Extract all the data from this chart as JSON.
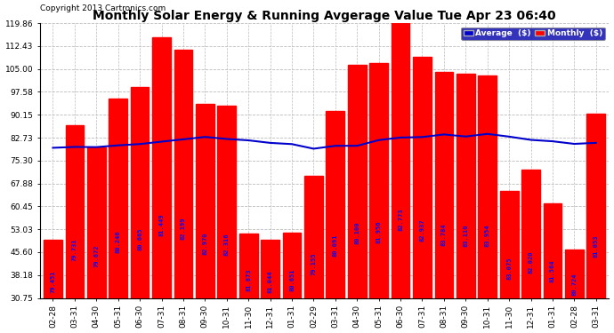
{
  "title": "Monthly Solar Energy & Running Avgerage Value Tue Apr 23 06:40",
  "copyright": "Copyright 2013 Cartronics.com",
  "categories": [
    "02-28",
    "03-31",
    "04-30",
    "05-31",
    "06-30",
    "07-31",
    "08-31",
    "09-30",
    "10-31",
    "11-30",
    "12-31",
    "01-31",
    "02-29",
    "03-31",
    "04-30",
    "05-31",
    "06-30",
    "07-31",
    "08-31",
    "09-30",
    "10-31",
    "11-30",
    "12-31",
    "01-31",
    "02-28",
    "03-31"
  ],
  "monthly_values": [
    49.5,
    86.7,
    79.5,
    95.5,
    99.2,
    115.2,
    111.3,
    93.6,
    93.0,
    51.5,
    49.5,
    51.8,
    70.5,
    91.5,
    106.5,
    107.0,
    122.0,
    109.0,
    104.0,
    103.5,
    103.0,
    65.5,
    72.5,
    61.5,
    46.5,
    90.5
  ],
  "average_values": [
    79.451,
    79.731,
    79.672,
    80.246,
    80.665,
    81.449,
    82.199,
    82.97,
    82.316,
    81.873,
    81.044,
    80.651,
    79.155,
    80.091,
    80.1,
    81.956,
    82.773,
    82.937,
    83.784,
    83.11,
    83.954,
    83.075,
    82.02,
    81.564,
    80.724,
    81.053
  ],
  "bar_color": "#ff0000",
  "line_color": "#0000cc",
  "avg_label_color": "#0000ff",
  "background_color": "#ffffff",
  "grid_color": "#bbbbbb",
  "ytick_labels": [
    "30.75",
    "38.18",
    "45.60",
    "53.03",
    "60.45",
    "67.88",
    "75.30",
    "82.73",
    "90.15",
    "97.58",
    "105.00",
    "112.43",
    "119.86"
  ],
  "ytick_values": [
    30.75,
    38.18,
    45.6,
    53.03,
    60.45,
    67.88,
    75.3,
    82.73,
    90.15,
    97.58,
    105.0,
    112.43,
    119.86
  ],
  "ymin": 30.75,
  "ymax": 119.86,
  "legend_avg_label": "Average  ($)",
  "legend_monthly_label": "Monthly  ($)",
  "title_fontsize": 10,
  "copyright_fontsize": 6.5,
  "bar_label_fontsize": 5.0,
  "axis_label_fontsize": 6.5
}
